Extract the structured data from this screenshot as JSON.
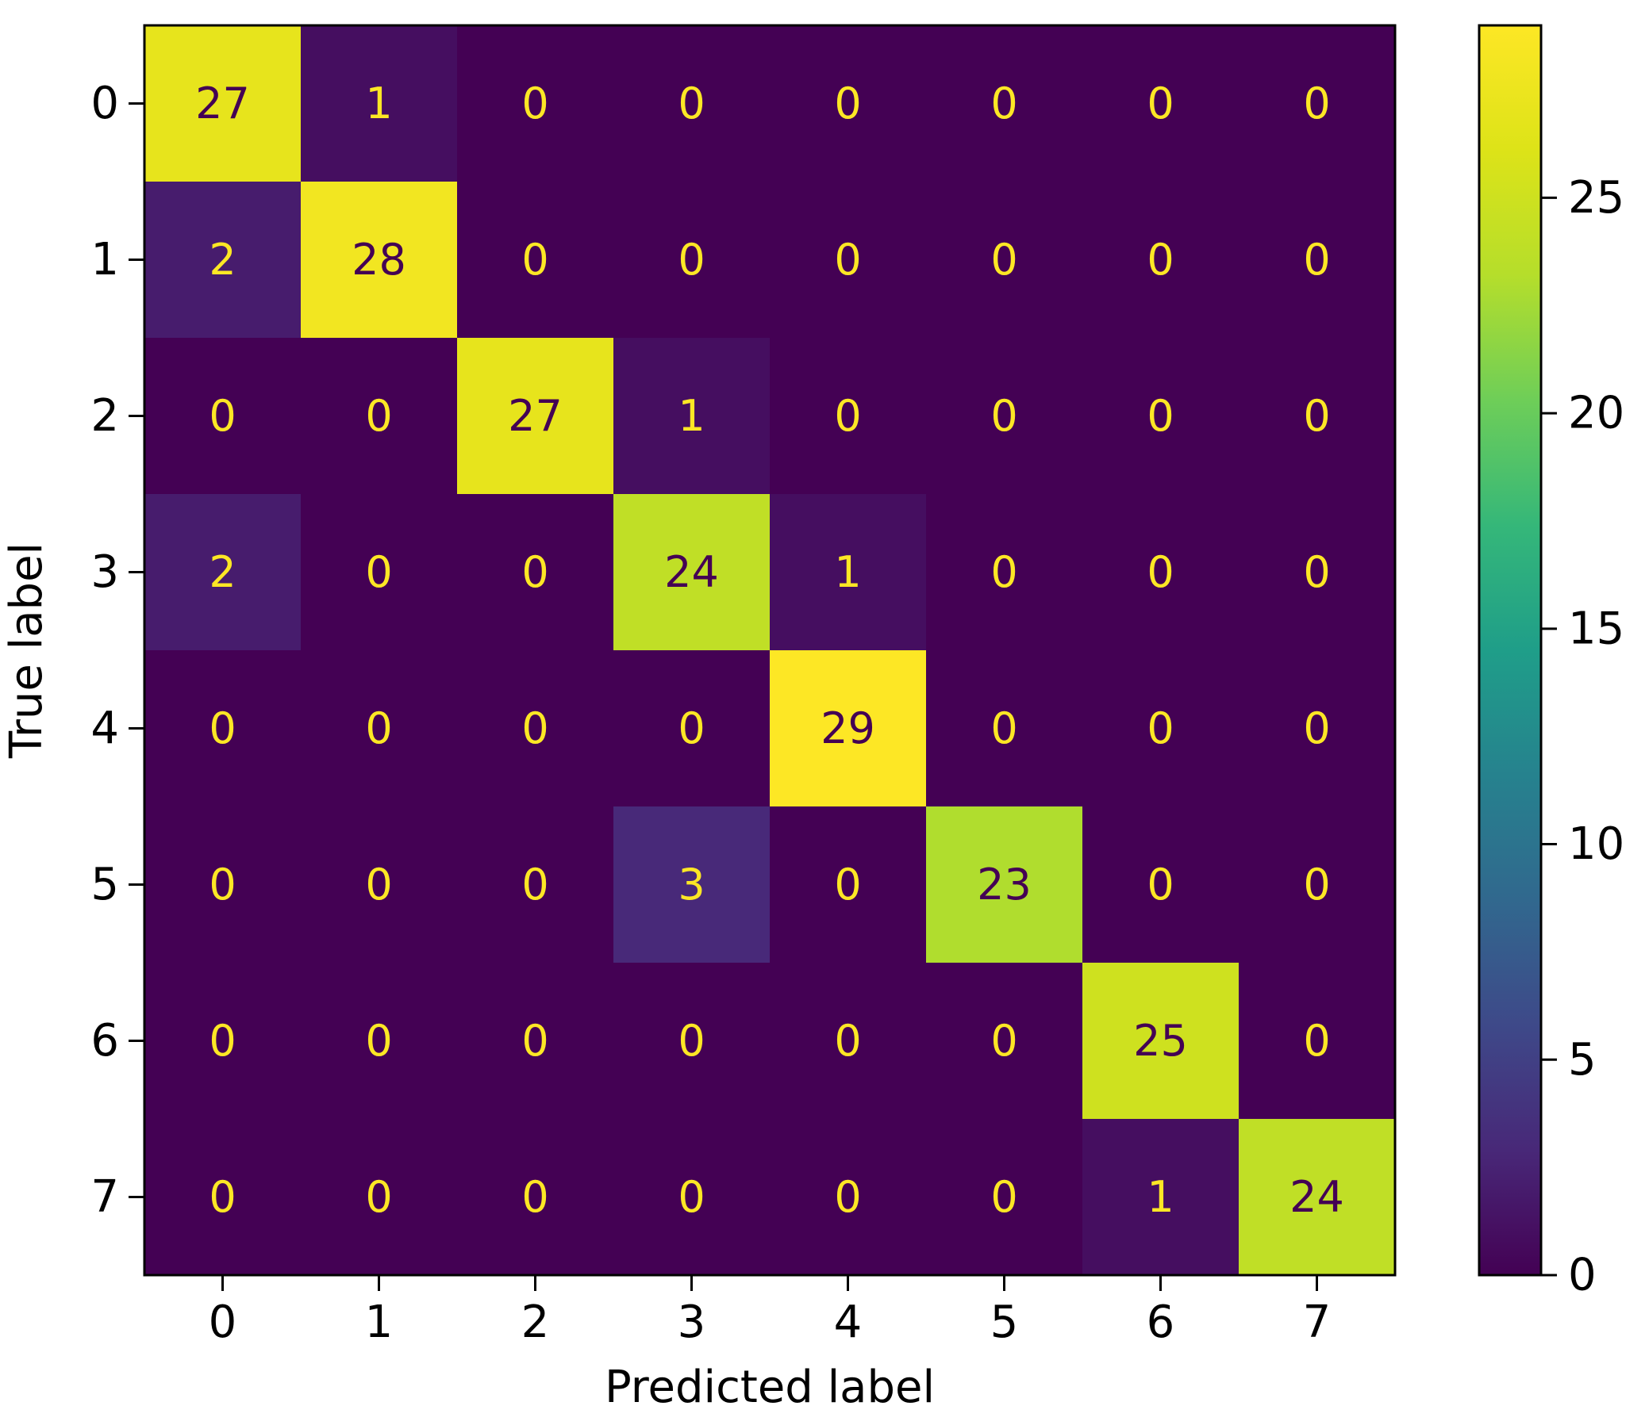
{
  "chart_data": {
    "type": "heatmap",
    "title": "",
    "xlabel": "Predicted label",
    "ylabel": "True label",
    "x_categories": [
      "0",
      "1",
      "2",
      "3",
      "4",
      "5",
      "6",
      "7"
    ],
    "y_categories": [
      "0",
      "1",
      "2",
      "3",
      "4",
      "5",
      "6",
      "7"
    ],
    "matrix": [
      [
        27,
        1,
        0,
        0,
        0,
        0,
        0,
        0
      ],
      [
        2,
        28,
        0,
        0,
        0,
        0,
        0,
        0
      ],
      [
        0,
        0,
        27,
        1,
        0,
        0,
        0,
        0
      ],
      [
        2,
        0,
        0,
        24,
        1,
        0,
        0,
        0
      ],
      [
        0,
        0,
        0,
        0,
        29,
        0,
        0,
        0
      ],
      [
        0,
        0,
        0,
        3,
        0,
        23,
        0,
        0
      ],
      [
        0,
        0,
        0,
        0,
        0,
        0,
        25,
        0
      ],
      [
        0,
        0,
        0,
        0,
        0,
        0,
        1,
        24
      ]
    ],
    "colormap": "viridis",
    "colorbar": {
      "vmin": 0,
      "vmax": 29,
      "ticks": [
        0,
        5,
        10,
        15,
        20,
        25
      ]
    },
    "annotation_colors": {
      "on_dark": "#fde725",
      "on_light": "#440154"
    },
    "grid": false
  }
}
